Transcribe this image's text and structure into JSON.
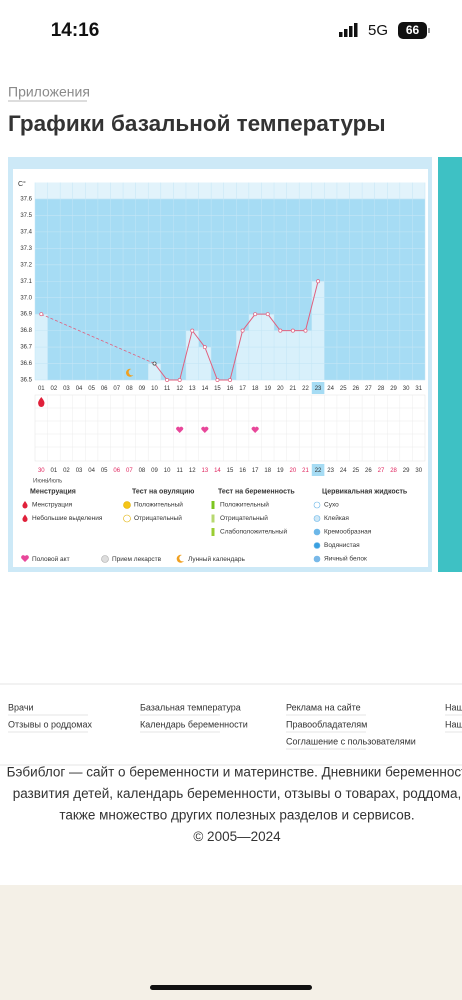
{
  "status_bar": {
    "time": "14:16",
    "network": "5G",
    "battery": "66"
  },
  "breadcrumb": "Приложения",
  "title": "Графики базальной температуры",
  "chart": {
    "type": "line",
    "unit": "C°",
    "ylim": [
      36.5,
      37.7
    ],
    "yticks": [
      37.6,
      37.5,
      37.4,
      37.3,
      37.2,
      37.1,
      {
        "value": 37,
        "label": "37.0"
      },
      36.9,
      36.8,
      36.7,
      36.6,
      36.5
    ],
    "categories": [
      "01",
      "02",
      "03",
      "04",
      "05",
      "06",
      "07",
      "08",
      "09",
      "10",
      "11",
      "12",
      "13",
      "14",
      "15",
      "16",
      "17",
      "18",
      "19",
      "20",
      "21",
      "22",
      "23",
      "24",
      "25",
      "26",
      "27",
      "28",
      "29",
      "30",
      "31"
    ],
    "values": [
      36.9,
      null,
      null,
      null,
      null,
      null,
      null,
      null,
      null,
      36.6,
      36.5,
      36.5,
      36.8,
      36.7,
      36.5,
      36.5,
      36.8,
      36.9,
      36.9,
      36.8,
      36.8,
      36.8,
      37.1,
      null,
      null,
      null,
      null,
      null,
      null,
      null,
      null
    ],
    "line_color": "#e0607e",
    "area_color": "#a6dcf4",
    "bar_color": "#d8f0fb",
    "highlight_index": 22,
    "dates": [
      {
        "text": "30",
        "color": "#e0245e"
      },
      {
        "text": "01",
        "color": "#333"
      },
      {
        "text": "02",
        "color": "#333"
      },
      {
        "text": "03",
        "color": "#333"
      },
      {
        "text": "04",
        "color": "#333"
      },
      {
        "text": "05",
        "color": "#333"
      },
      {
        "text": "06",
        "color": "#e0245e"
      },
      {
        "text": "07",
        "color": "#e0245e"
      },
      {
        "text": "08",
        "color": "#333"
      },
      {
        "text": "09",
        "color": "#333"
      },
      {
        "text": "10",
        "color": "#333"
      },
      {
        "text": "11",
        "color": "#333"
      },
      {
        "text": "12",
        "color": "#333"
      },
      {
        "text": "13",
        "color": "#e0245e"
      },
      {
        "text": "14",
        "color": "#e0245e"
      },
      {
        "text": "15",
        "color": "#333"
      },
      {
        "text": "16",
        "color": "#333"
      },
      {
        "text": "17",
        "color": "#333"
      },
      {
        "text": "18",
        "color": "#333"
      },
      {
        "text": "19",
        "color": "#333"
      },
      {
        "text": "20",
        "color": "#e0245e"
      },
      {
        "text": "21",
        "color": "#e0245e"
      },
      {
        "text": "22",
        "color": "#333"
      },
      {
        "text": "23",
        "color": "#333"
      },
      {
        "text": "24",
        "color": "#333"
      },
      {
        "text": "25",
        "color": "#333"
      },
      {
        "text": "26",
        "color": "#333"
      },
      {
        "text": "27",
        "color": "#e0245e"
      },
      {
        "text": "28",
        "color": "#e0245e"
      },
      {
        "text": "29",
        "color": "#333"
      },
      {
        "text": "30",
        "color": "#333"
      }
    ],
    "month_labels": [
      "Июнь",
      "Июль"
    ],
    "events": {
      "moon": [
        7
      ],
      "menstruation": [
        0
      ],
      "intercourse": [
        11,
        13,
        17
      ]
    }
  },
  "legend": {
    "columns": [
      {
        "heading": "Менструация",
        "items": [
          "Менструация",
          "Небольшие выделения"
        ]
      },
      {
        "heading": "Тест на овуляцию",
        "items": [
          "Положительный",
          "Отрицательный"
        ]
      },
      {
        "heading": "Тест на беременность",
        "items": [
          "Положительный",
          "Отрицательный",
          "Слабоположительный"
        ]
      },
      {
        "heading": "Цервикальная жидкость",
        "items": [
          "Сухо",
          "Клейкая",
          "Кремообразная",
          "Водянистая",
          "Яичный белок"
        ]
      }
    ],
    "bottom": [
      "Половой акт",
      "Прием лекарств",
      "Лунный календарь"
    ]
  },
  "footer": {
    "links": [
      [
        "Врачи",
        "Отзывы о роддомах"
      ],
      [
        "Базальная температура",
        "Календарь беременности"
      ],
      [
        "Реклама на сайте",
        "Правообладателям",
        "Соглашение с пользователями"
      ],
      [
        "Наш",
        "Наш"
      ]
    ],
    "about": [
      "Бэбиблог — сайт о беременности и материнстве. Дневники беременност",
      "развития детей, календарь беременности, отзывы о товарах, роддома,",
      "также множество других полезных разделов и сервисов.",
      "© 2005—2024"
    ]
  }
}
